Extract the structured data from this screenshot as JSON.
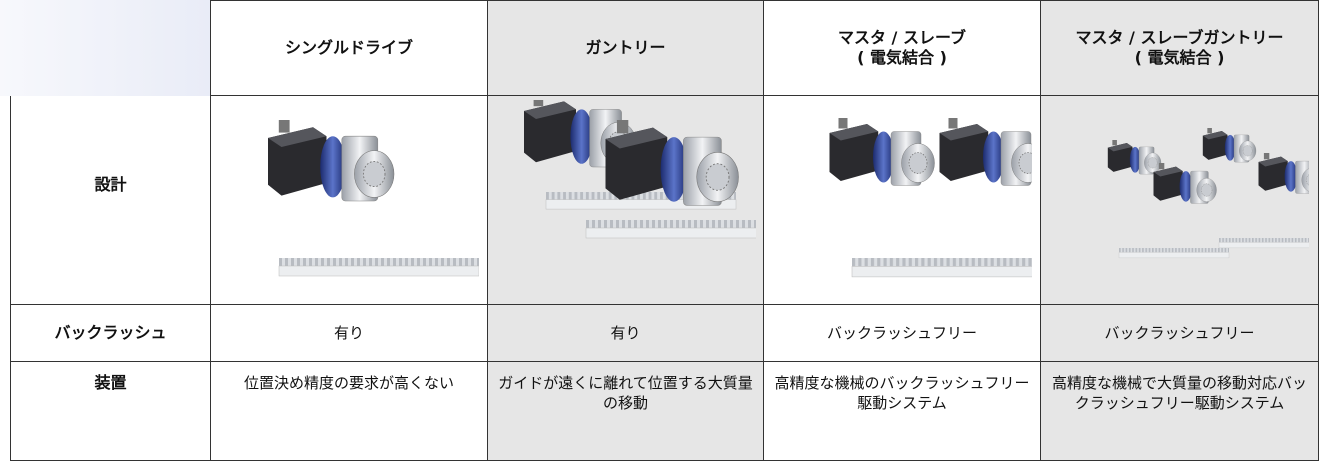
{
  "header": {
    "columns": [
      {
        "lines": [
          "シングルドライブ"
        ]
      },
      {
        "lines": [
          "ガントリー"
        ]
      },
      {
        "lines": [
          "マスタ / スレーブ",
          "( 電気結合 )"
        ]
      },
      {
        "lines": [
          "マスタ / スレーブガントリー",
          "( 電気結合 )"
        ]
      }
    ]
  },
  "rows": [
    {
      "label": "設計",
      "cells": []
    },
    {
      "label": "バックラッシュ",
      "cells": [
        "有り",
        "有り",
        "バックラッシュフリー",
        "バックラッシュフリー"
      ]
    },
    {
      "label": "装置",
      "cells": [
        "位置決め精度の要求が高くない",
        "ガイドが遠くに離れて位置する大質量の移動",
        "高精度な機械のバックラッシュフリー駆動システム",
        "高精度な機械で大質量の移動対応バックラッシュフリー駆動システム"
      ]
    }
  ]
}
